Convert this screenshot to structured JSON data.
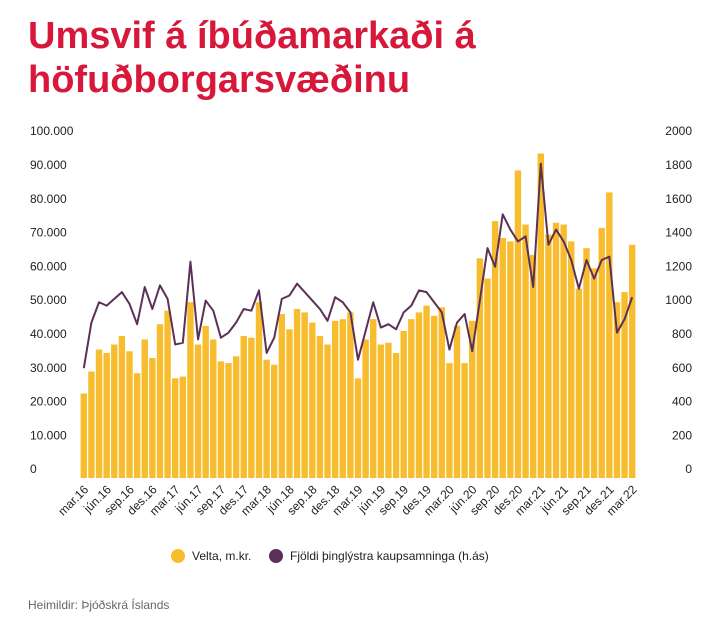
{
  "chart_data": {
    "type": "bar_line",
    "title": [
      "Umsvif á íbúðamarkaði á",
      "höfuðborgarsvæðinu"
    ],
    "source": "Heimildir: Þjóðskrá Íslands",
    "categories": [
      "mar.16",
      null,
      null,
      "jún.16",
      null,
      null,
      "sep.16",
      null,
      null,
      "des.16",
      null,
      null,
      "mar.17",
      null,
      null,
      "jún.17",
      null,
      null,
      "sep.17",
      null,
      null,
      "des.17",
      null,
      null,
      "mar.18",
      null,
      null,
      "jún.18",
      null,
      null,
      "sep.18",
      null,
      null,
      "des.18",
      null,
      null,
      "mar.19",
      null,
      null,
      "jún.19",
      null,
      null,
      "sep.19",
      null,
      null,
      "des.19",
      null,
      null,
      "mar.20",
      null,
      null,
      "jún.20",
      null,
      null,
      "sep.20",
      null,
      null,
      "des.20",
      null,
      null,
      "mar.21",
      null,
      null,
      "jún.21",
      null,
      null,
      "sep.21",
      null,
      null,
      "des.21",
      null,
      null,
      "mar.22"
    ],
    "series": [
      {
        "name": "Velta, m.kr.",
        "color": "#f8bd2e",
        "kind": "bar",
        "values": [
          25000,
          31500,
          38000,
          37000,
          39500,
          42000,
          37500,
          31000,
          41000,
          35500,
          45500,
          49500,
          29500,
          30000,
          52000,
          39500,
          45000,
          41000,
          34500,
          34000,
          36000,
          42000,
          41500,
          52000,
          35000,
          33500,
          48500,
          44000,
          50000,
          49000,
          46000,
          42000,
          39500,
          46500,
          47000,
          49000,
          29500,
          41000,
          47000,
          39500,
          40000,
          37000,
          43500,
          47000,
          49000,
          51000,
          48000,
          50500,
          34000,
          45000,
          34000,
          46500,
          65000,
          59000,
          76000,
          71000,
          70000,
          91000,
          75000,
          66000,
          96000,
          72000,
          75500,
          75000,
          70000,
          56000,
          68000,
          62000,
          74000,
          84500,
          52000,
          55000,
          69000
        ]
      },
      {
        "name": "Fjöldi þinglýstra kaupsamninga (h.ás)",
        "color": "#5b3157",
        "kind": "line",
        "axis": "y2",
        "values": [
          650,
          920,
          1040,
          1020,
          1060,
          1100,
          1030,
          910,
          1130,
          1000,
          1140,
          1060,
          790,
          800,
          1280,
          820,
          1050,
          990,
          830,
          860,
          920,
          1000,
          990,
          1110,
          740,
          830,
          1060,
          1080,
          1150,
          1100,
          1050,
          1000,
          930,
          1070,
          1040,
          980,
          700,
          870,
          1040,
          890,
          910,
          880,
          980,
          1020,
          1110,
          1100,
          1040,
          980,
          760,
          920,
          970,
          750,
          1050,
          1360,
          1250,
          1560,
          1470,
          1400,
          1430,
          1130,
          1860,
          1380,
          1470,
          1400,
          1290,
          1120,
          1290,
          1180,
          1290,
          1310,
          860,
          940,
          1070
        ]
      }
    ],
    "ylim": [
      0,
      100000
    ],
    "yticks": [
      0,
      {
        "value": 10000,
        "label": "10.000"
      },
      {
        "value": 20000,
        "label": "20.000"
      },
      {
        "value": 30000,
        "label": "30.000"
      },
      {
        "value": 40000,
        "label": "40.000"
      },
      {
        "value": 50000,
        "label": "50.000"
      },
      {
        "value": 60000,
        "label": "60.000"
      },
      {
        "value": 70000,
        "label": "70.000"
      },
      {
        "value": 80000,
        "label": "80.000"
      },
      {
        "value": 90000,
        "label": "90.000"
      },
      {
        "value": 100000,
        "label": "100.000"
      }
    ],
    "y2lim": [
      0,
      2000
    ],
    "y2ticks": [
      0,
      200,
      400,
      600,
      800,
      1000,
      1200,
      1400,
      1600,
      1800,
      2000
    ],
    "grid": false
  }
}
